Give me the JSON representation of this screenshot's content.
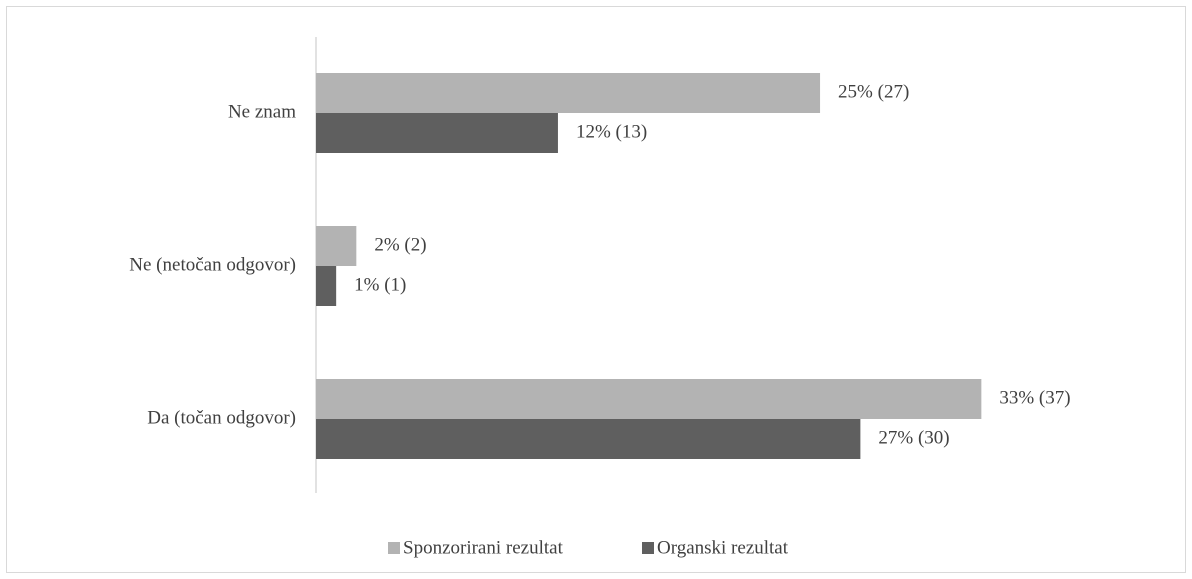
{
  "chart_data": {
    "type": "bar",
    "orientation": "horizontal",
    "categories": [
      "Ne znam",
      "Ne (netočan odgovor)",
      "Da (točan odgovor)"
    ],
    "series": [
      {
        "name": "Sponzorirani rezultat",
        "color": "#b3b3b3",
        "values": [
          25,
          2,
          33
        ],
        "labels": [
          "25% (27)",
          "2% (2)",
          "33% (37)"
        ]
      },
      {
        "name": "Organski rezultat",
        "color": "#5f5f5f",
        "values": [
          12,
          1,
          27
        ],
        "labels": [
          "12% (13)",
          "1% (1)",
          "27% (30)"
        ]
      }
    ],
    "xlim": [
      0,
      37
    ],
    "grid": false,
    "legend_position": "bottom"
  }
}
